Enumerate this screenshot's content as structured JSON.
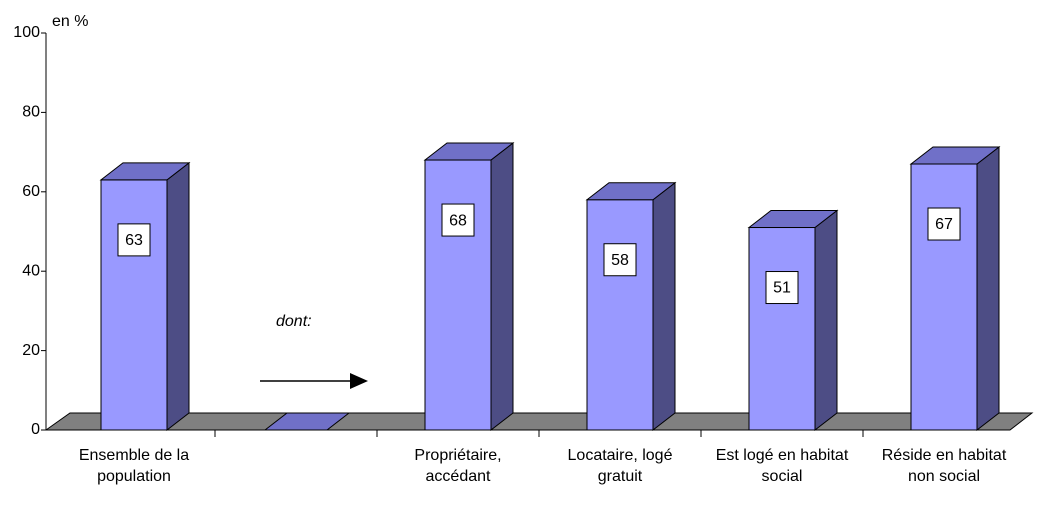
{
  "chart_data": {
    "type": "bar3d",
    "y_unit": "en %",
    "categories": [
      "Ensemble de la population",
      null,
      "Propriétaire, accédant",
      "Locataire, logé gratuit",
      "Est logé en habitat social",
      "Réside en habitat non social"
    ],
    "values": [
      63,
      null,
      68,
      58,
      51,
      67
    ],
    "color": "#9999ff",
    "ylim": [
      0,
      100
    ],
    "yticks": [
      0,
      20,
      40,
      60,
      80,
      100
    ],
    "annotation": "dont:"
  }
}
